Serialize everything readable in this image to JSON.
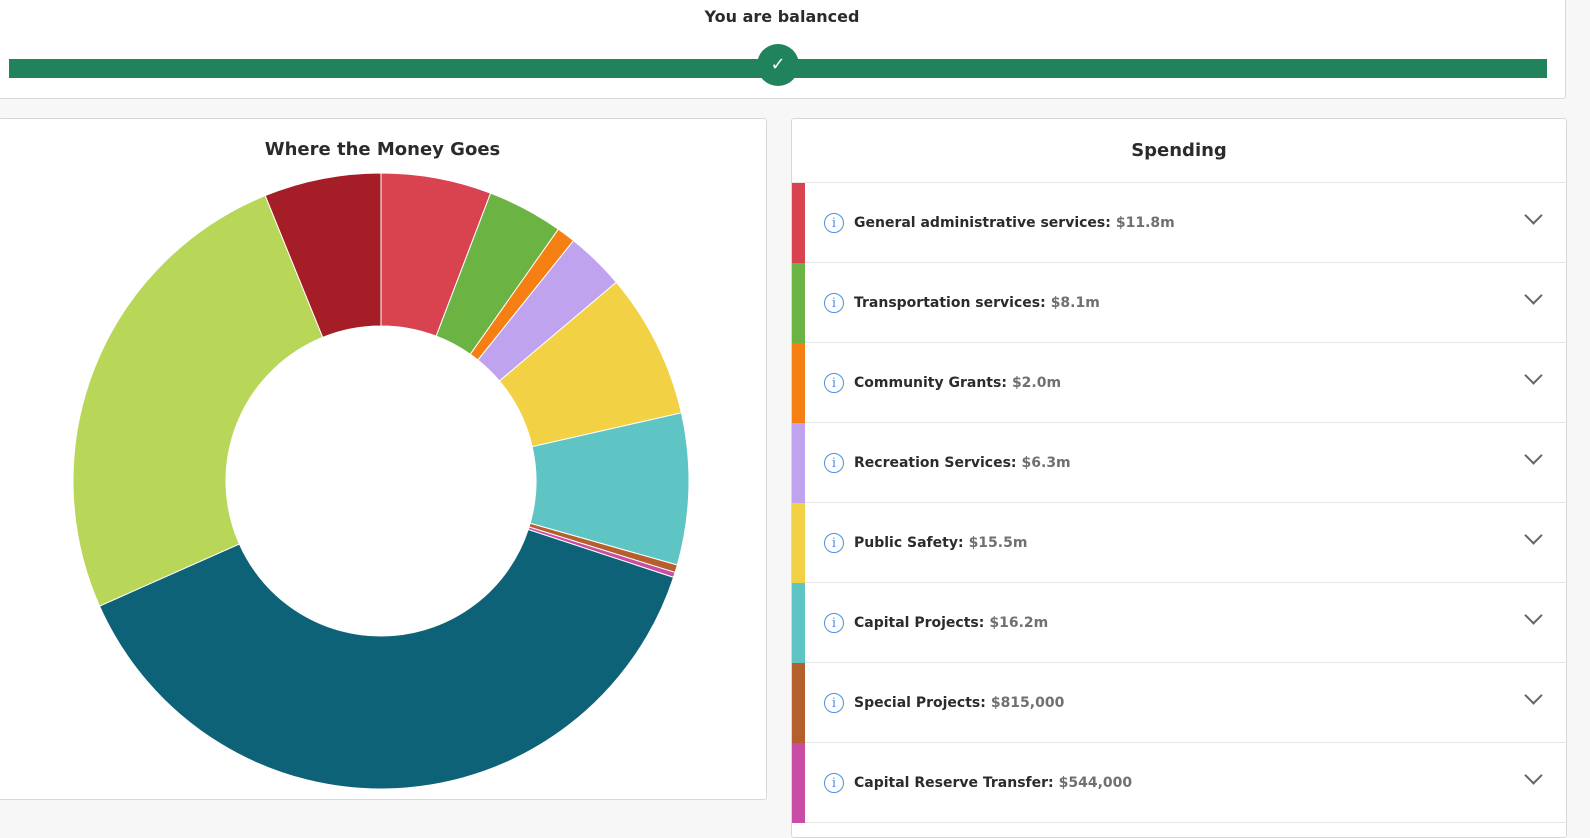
{
  "balance": {
    "title": "You are balanced",
    "icon": "check-icon",
    "color": "#21835b"
  },
  "chart_title": "Where the Money Goes",
  "spending": {
    "title": "Spending",
    "items": [
      {
        "label": "General administrative services:",
        "value": "$11.8m",
        "color": "#d9434f"
      },
      {
        "label": "Transportation services:",
        "value": "$8.1m",
        "color": "#6bb343"
      },
      {
        "label": "Community Grants:",
        "value": "$2.0m",
        "color": "#f57f12"
      },
      {
        "label": "Recreation Services:",
        "value": "$6.3m",
        "color": "#c0a3ef"
      },
      {
        "label": "Public Safety:",
        "value": "$15.5m",
        "color": "#f2d244"
      },
      {
        "label": "Capital Projects:",
        "value": "$16.2m",
        "color": "#5fc5c4"
      },
      {
        "label": "Special Projects:",
        "value": "$815,000",
        "color": "#b5602c"
      },
      {
        "label": "Capital Reserve Transfer:",
        "value": "$544,000",
        "color": "#c94da4"
      }
    ]
  },
  "chart_data": {
    "type": "pie",
    "donut": true,
    "title": "Where the Money Goes",
    "slices": [
      {
        "name": "General administrative services",
        "value": 11.8,
        "color": "#d9434f"
      },
      {
        "name": "Transportation services",
        "value": 8.1,
        "color": "#6bb343"
      },
      {
        "name": "Community Grants",
        "value": 2.0,
        "color": "#f57f12"
      },
      {
        "name": "Recreation Services",
        "value": 6.3,
        "color": "#c0a3ef"
      },
      {
        "name": "Public Safety",
        "value": 15.5,
        "color": "#f2d244"
      },
      {
        "name": "Capital Projects",
        "value": 16.2,
        "color": "#5fc5c4"
      },
      {
        "name": "Special Projects",
        "value": 0.815,
        "color": "#b5602c"
      },
      {
        "name": "Capital Reserve Transfer",
        "value": 0.544,
        "color": "#c94da4"
      },
      {
        "name": "",
        "value": 78,
        "color": "#0e6278"
      },
      {
        "name": "",
        "value": 52,
        "color": "#b8d658"
      },
      {
        "name": "",
        "value": 12.5,
        "color": "#a51d27"
      }
    ]
  }
}
